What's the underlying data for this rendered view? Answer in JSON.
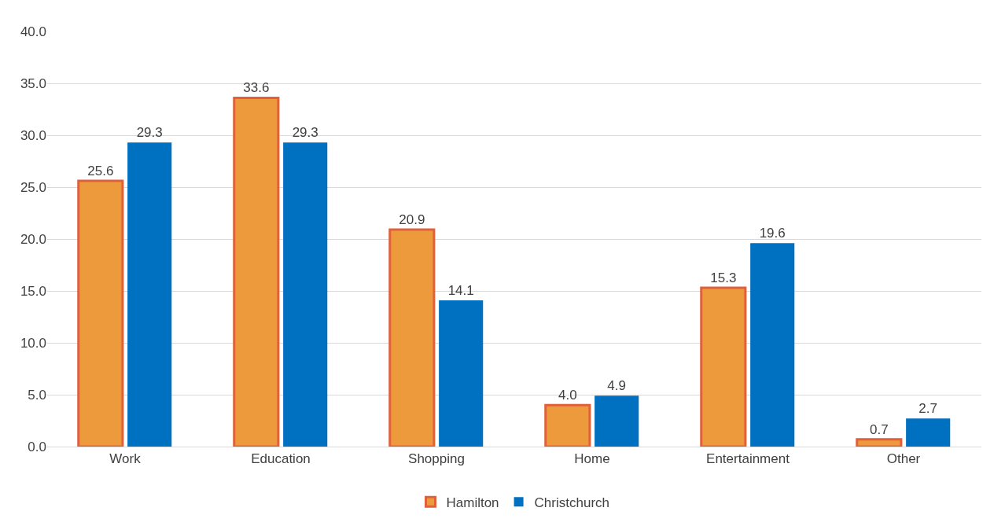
{
  "chart_data": {
    "type": "bar",
    "categories": [
      "Work",
      "Education",
      "Shopping",
      "Home",
      "Entertainment",
      "Other"
    ],
    "series": [
      {
        "name": "Hamilton",
        "color": "#ed9a3c",
        "values": [
          25.6,
          33.6,
          20.9,
          4.0,
          15.3,
          0.7
        ],
        "value_labels": [
          "25.6",
          "33.6",
          "20.9",
          "4.0",
          "15.3",
          "0.7"
        ]
      },
      {
        "name": "Christchurch",
        "color": "#0070c0",
        "values": [
          29.3,
          29.3,
          14.1,
          4.9,
          19.6,
          2.7
        ],
        "value_labels": [
          "29.3",
          "29.3",
          "14.1",
          "4.9",
          "19.6",
          "2.7"
        ]
      }
    ],
    "ylim": [
      0,
      40
    ],
    "yticks": [
      {
        "value": 0,
        "label": "0.0"
      },
      {
        "value": 5,
        "label": "5.0"
      },
      {
        "value": 10,
        "label": "10.0"
      },
      {
        "value": 15,
        "label": "15.0"
      },
      {
        "value": 20,
        "label": "20.0"
      },
      {
        "value": 25,
        "label": "25.0"
      },
      {
        "value": 30,
        "label": "30.0"
      },
      {
        "value": 35,
        "label": "35.0"
      },
      {
        "value": 40,
        "label": "40.0"
      }
    ],
    "grid": "y",
    "legend": "bottom"
  }
}
